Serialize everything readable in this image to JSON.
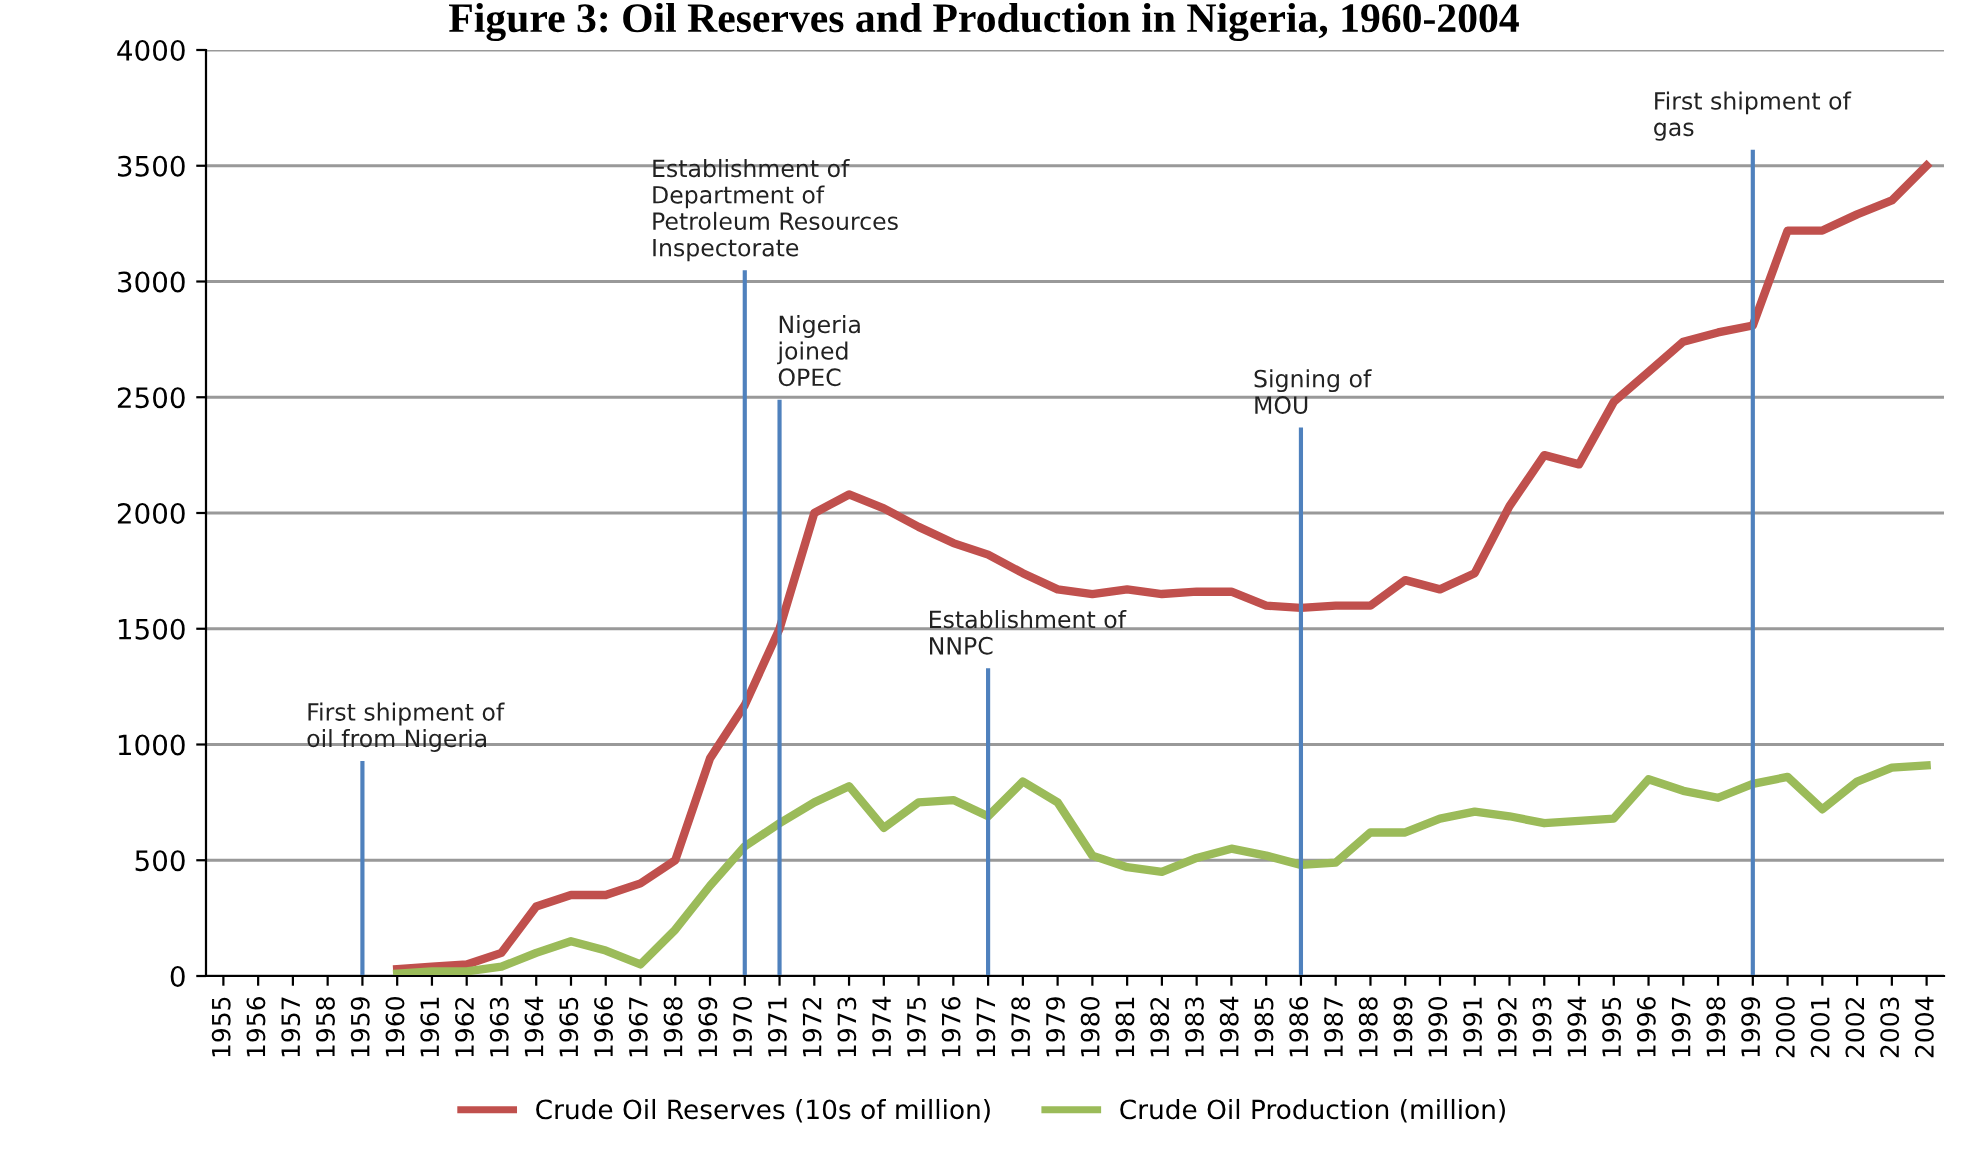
{
  "chart_data": {
    "type": "line",
    "title": "Figure 3: Oil Reserves and Production in Nigeria, 1960-2004",
    "categories": [
      "1955",
      "1956",
      "1957",
      "1958",
      "1959",
      "1960",
      "1961",
      "1962",
      "1963",
      "1964",
      "1965",
      "1966",
      "1967",
      "1968",
      "1969",
      "1970",
      "1971",
      "1972",
      "1973",
      "1974",
      "1975",
      "1976",
      "1977",
      "1978",
      "1979",
      "1980",
      "1981",
      "1982",
      "1983",
      "1984",
      "1985",
      "1986",
      "1987",
      "1988",
      "1989",
      "1990",
      "1991",
      "1992",
      "1993",
      "1994",
      "1995",
      "1996",
      "1997",
      "1998",
      "1999",
      "2000",
      "2001",
      "2002",
      "2003",
      "2004"
    ],
    "series": [
      {
        "name": "Crude Oil Reserves (10s of million)",
        "color": "#c0504d",
        "values": [
          null,
          null,
          null,
          null,
          null,
          30,
          40,
          50,
          100,
          300,
          350,
          350,
          400,
          500,
          940,
          1170,
          1500,
          2000,
          2080,
          2020,
          1940,
          1870,
          1820,
          1740,
          1670,
          1650,
          1670,
          1650,
          1660,
          1660,
          1600,
          1590,
          1600,
          1600,
          1710,
          1670,
          1740,
          2030,
          2250,
          2210,
          2480,
          2610,
          2740,
          2780,
          2810,
          3220,
          3220,
          3290,
          3350,
          3500
        ]
      },
      {
        "name": "Crude Oil Production (million)",
        "color": "#9bbb59",
        "values": [
          null,
          null,
          null,
          null,
          null,
          10,
          20,
          20,
          40,
          100,
          150,
          110,
          50,
          200,
          390,
          560,
          660,
          750,
          820,
          640,
          750,
          760,
          690,
          840,
          750,
          520,
          470,
          450,
          510,
          550,
          520,
          480,
          490,
          620,
          620,
          680,
          710,
          690,
          660,
          670,
          680,
          850,
          800,
          770,
          830,
          860,
          720,
          840,
          900,
          910
        ]
      }
    ],
    "ylim": [
      0,
      4000
    ],
    "yticks": [
      0,
      500,
      1000,
      1500,
      2000,
      2500,
      3000,
      3500,
      4000
    ],
    "grid": "y",
    "legend": "bottom",
    "marker": "none",
    "line_style": "solid",
    "ref_lines": [
      {
        "axis": "x",
        "value": "1959",
        "label": "First shipment of\noil from Nigeria",
        "color": "#4f81bd"
      },
      {
        "axis": "x",
        "value": "1970",
        "label": "Establishment of\nDepartment of\nPetroleum Resources\nInspectorate",
        "color": "#4f81bd"
      },
      {
        "axis": "x",
        "value": "1971",
        "label": "Nigeria\njoined\nOPEC",
        "color": "#4f81bd"
      },
      {
        "axis": "x",
        "value": "1977",
        "label": "Establishment of\nNNPC",
        "color": "#4f81bd"
      },
      {
        "axis": "x",
        "value": "1986",
        "label": "Signing of\nMOU",
        "color": "#4f81bd"
      },
      {
        "axis": "x",
        "value": "1999",
        "label": "First shipment of\ngas",
        "color": "#4f81bd"
      }
    ]
  }
}
